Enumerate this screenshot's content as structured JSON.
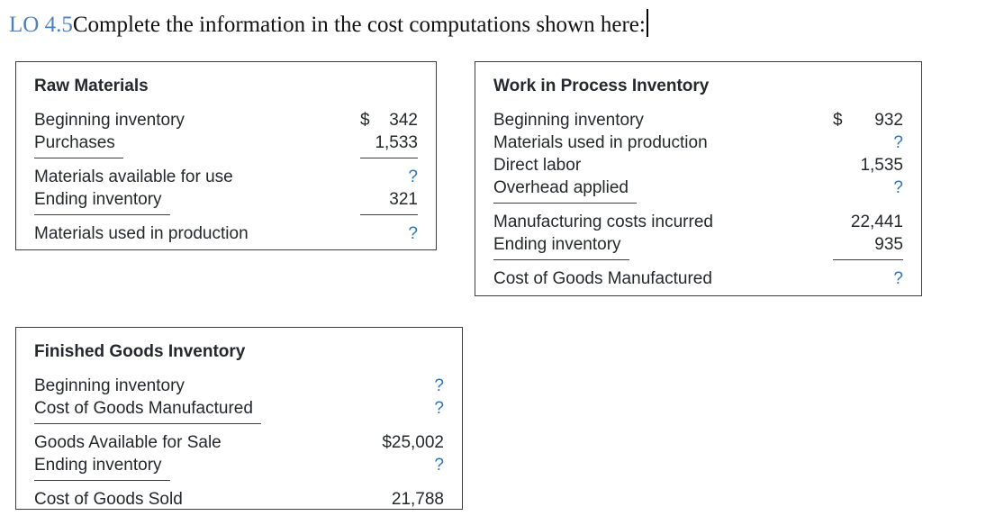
{
  "page_title": {
    "lo_tag": "LO 4.5",
    "text": "Complete the information in the cost computations shown here:"
  },
  "colors": {
    "text": "#24282c",
    "border": "#3b3f42",
    "unknown_blue": "#2e74b5",
    "lo_tag_blue": "#4d80be"
  },
  "boxes": [
    {
      "title": "Raw Materials",
      "rows": [
        {
          "label": "Beginning inventory",
          "currency": "$",
          "value": "342"
        },
        {
          "label": "Purchases",
          "value": "1,533",
          "rule_label": true,
          "rule_value": true
        },
        {
          "label": "Materials available for use",
          "value": "?",
          "unknown": true
        },
        {
          "label": "Ending inventory",
          "value": "321",
          "rule_label": true,
          "rule_value": true
        },
        {
          "label": "Materials used in production",
          "value": "?",
          "unknown": true
        }
      ]
    },
    {
      "title": "Work in Process Inventory",
      "rows": [
        {
          "label": "Beginning inventory",
          "currency": "$",
          "value": "932"
        },
        {
          "label": "Materials used in production",
          "value": "?",
          "unknown": true
        },
        {
          "label": "Direct labor",
          "value": "1,535"
        },
        {
          "label": "Overhead applied",
          "value": "?",
          "unknown": true,
          "rule_label": true
        },
        {
          "label": "Manufacturing costs incurred",
          "value": "22,441"
        },
        {
          "label": "Ending inventory",
          "value": "935",
          "rule_label": true,
          "rule_value": true
        },
        {
          "label": "Cost of Goods Manufactured",
          "value": "?",
          "unknown": true
        }
      ]
    },
    {
      "title": "Finished Goods Inventory",
      "rows": [
        {
          "label": "Beginning inventory",
          "value": "?",
          "unknown": true
        },
        {
          "label": "Cost of Goods Manufactured",
          "value": "?",
          "unknown": true,
          "rule_label": true
        },
        {
          "label": "Goods Available for Sale",
          "value": "$25,002"
        },
        {
          "label": "Ending inventory",
          "value": "?",
          "unknown": true,
          "rule_label": true
        },
        {
          "label": "Cost of Goods Sold",
          "value": "21,788"
        }
      ]
    }
  ]
}
